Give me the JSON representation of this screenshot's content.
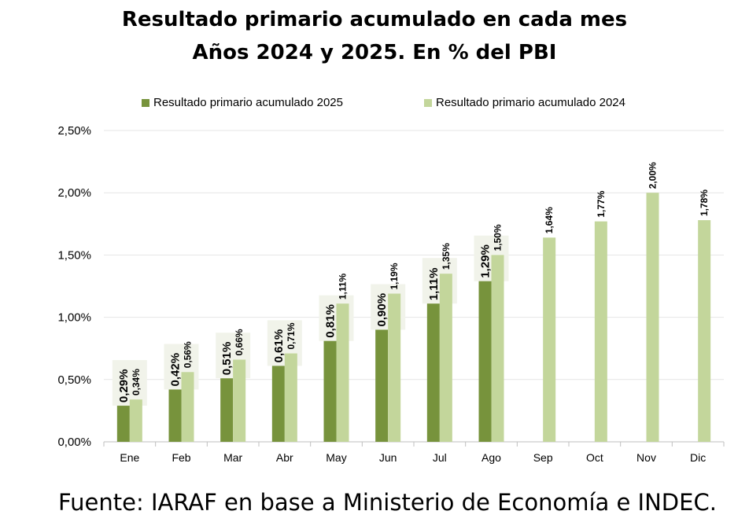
{
  "chart_data": {
    "type": "bar",
    "title": "Resultado primario acumulado en cada mes",
    "subtitle": "Años 2024 y 2025. En % del PBI",
    "categories": [
      "Ene",
      "Feb",
      "Mar",
      "Abr",
      "May",
      "Jun",
      "Jul",
      "Ago",
      "Sep",
      "Oct",
      "Nov",
      "Dic"
    ],
    "series": [
      {
        "name": "Resultado primario acumulado 2025",
        "color": "#77933c",
        "values": [
          0.29,
          0.42,
          0.51,
          0.61,
          0.81,
          0.9,
          1.11,
          1.29,
          null,
          null,
          null,
          null
        ],
        "labels": [
          "0,29%",
          "0,42%",
          "0,51%",
          "0,61%",
          "0,81%",
          "0,90%",
          "1,11%",
          "1,29%",
          null,
          null,
          null,
          null
        ]
      },
      {
        "name": "Resultado primario acumulado 2024",
        "color": "#c3d69b",
        "values": [
          0.34,
          0.56,
          0.66,
          0.71,
          1.11,
          1.19,
          1.35,
          1.5,
          1.64,
          1.77,
          2.0,
          1.78
        ],
        "labels": [
          "0,34%",
          "0,56%",
          "0,66%",
          "0,71%",
          "1,11%",
          "1,19%",
          "1,35%",
          "1,50%",
          "1,64%",
          "1,77%",
          "2,00%",
          "1,78%"
        ]
      }
    ],
    "ylim": [
      0,
      2.5
    ],
    "yticks": [
      0,
      0.5,
      1.0,
      1.5,
      2.0,
      2.5
    ],
    "ytick_labels": [
      "0,00%",
      "0,50%",
      "1,00%",
      "1,50%",
      "2,00%",
      "2,50%"
    ],
    "grid": true,
    "legend": "top"
  },
  "source": "Fuente: IARAF en base a Ministerio de Economía e INDEC."
}
